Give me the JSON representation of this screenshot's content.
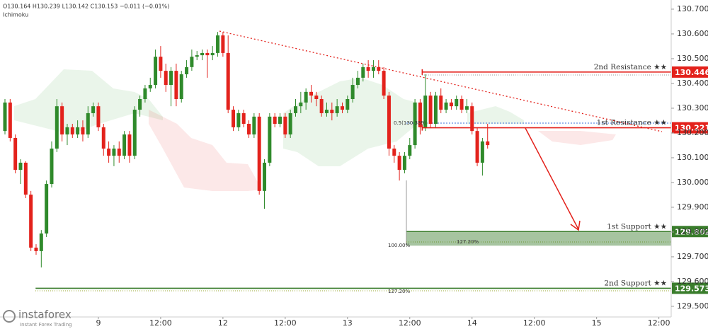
{
  "chart_data": {
    "type": "candlestick",
    "header": "O130.164 H130.239 L130.142 C130.153 −0.011 (−0.01%)",
    "indicator": "Ichimoku",
    "up_color": "#2f8a2b",
    "down_color": "#e3221c",
    "xlim": [
      -0.955,
      128.37
    ],
    "ylim": [
      129.457,
      130.737
    ],
    "xticks": [
      {
        "value": 18,
        "label": "9"
      },
      {
        "value": 30,
        "label": "12:00"
      },
      {
        "value": 42,
        "label": "12"
      },
      {
        "value": 54,
        "label": "12:00"
      },
      {
        "value": 66,
        "label": "13"
      },
      {
        "value": 78,
        "label": "12:00"
      },
      {
        "value": 90,
        "label": "14"
      },
      {
        "value": 102,
        "label": "12:00"
      },
      {
        "value": 114,
        "label": "15"
      },
      {
        "value": 126,
        "label": "12:00"
      }
    ],
    "yticks": [
      {
        "value": 130.7,
        "label": "130.700"
      },
      {
        "value": 130.6,
        "label": "130.600"
      },
      {
        "value": 130.5,
        "label": "130.500"
      },
      {
        "value": 130.4,
        "label": "130.400"
      },
      {
        "value": 130.3,
        "label": "130.300"
      },
      {
        "value": 130.2,
        "label": "130.200"
      },
      {
        "value": 130.1,
        "label": "130.100"
      },
      {
        "value": 130.0,
        "label": "130.000"
      },
      {
        "value": 129.9,
        "label": "129.900"
      },
      {
        "value": 129.8,
        "label": "129.800"
      },
      {
        "value": 129.7,
        "label": "129.700"
      },
      {
        "value": 129.6,
        "label": "129.600"
      },
      {
        "value": 129.5,
        "label": "129.500"
      }
    ],
    "open": [
      130.208,
      130.323,
      130.18,
      130.051,
      130.08,
      129.951,
      129.737,
      129.723,
      129.794,
      129.994,
      130.137,
      130.308,
      130.194,
      130.223,
      130.194,
      130.223,
      130.194,
      130.28,
      130.308,
      130.223,
      130.137,
      130.108,
      130.137,
      130.108,
      130.194,
      130.108,
      130.294,
      130.337,
      130.38,
      130.394,
      130.508,
      130.451,
      130.394,
      130.451,
      130.337,
      130.437,
      130.466,
      130.508,
      130.514,
      130.523,
      130.514,
      130.523,
      130.594,
      130.523,
      130.294,
      130.223,
      130.28,
      130.237,
      130.194,
      130.266,
      129.966,
      130.08,
      130.266,
      130.237,
      130.266,
      130.194,
      130.28,
      130.308,
      130.323,
      130.366,
      130.351,
      130.337,
      130.28,
      130.294,
      130.28,
      130.308,
      130.294,
      130.337,
      130.394,
      130.423,
      130.466,
      130.451,
      130.466,
      130.451,
      130.351,
      130.137,
      130.108,
      130.051,
      130.108,
      130.151,
      130.323,
      130.223,
      130.351,
      130.237,
      130.351,
      130.294,
      130.323,
      130.308,
      130.337,
      130.294,
      130.308,
      130.208,
      130.08,
      130.166
    ],
    "high": [
      130.337,
      130.337,
      130.194,
      130.094,
      130.086,
      129.966,
      129.751,
      129.808,
      130.008,
      130.166,
      130.337,
      130.323,
      130.237,
      130.237,
      130.251,
      130.251,
      130.308,
      130.323,
      130.323,
      130.237,
      130.166,
      130.151,
      130.166,
      130.208,
      130.208,
      130.308,
      130.351,
      130.394,
      130.423,
      130.537,
      130.551,
      130.48,
      130.466,
      130.48,
      130.451,
      130.494,
      130.537,
      130.531,
      130.537,
      130.537,
      130.551,
      130.608,
      130.608,
      130.594,
      130.308,
      130.294,
      130.294,
      130.251,
      130.28,
      130.28,
      130.094,
      130.28,
      130.28,
      130.28,
      130.28,
      130.294,
      130.337,
      130.366,
      130.38,
      130.394,
      130.366,
      130.351,
      130.323,
      130.323,
      130.337,
      130.323,
      130.351,
      130.423,
      130.451,
      130.48,
      130.494,
      130.494,
      130.494,
      130.466,
      130.366,
      130.151,
      130.123,
      130.123,
      130.18,
      130.337,
      130.337,
      130.437,
      130.366,
      130.366,
      130.38,
      130.337,
      130.337,
      130.351,
      130.351,
      130.337,
      130.323,
      130.223,
      130.18,
      130.237
    ],
    "low": [
      130.194,
      130.166,
      130.037,
      129.994,
      129.937,
      129.723,
      129.708,
      129.657,
      129.78,
      129.98,
      130.123,
      130.166,
      130.151,
      130.18,
      130.18,
      130.166,
      130.18,
      130.266,
      130.208,
      130.108,
      130.08,
      130.066,
      130.08,
      130.094,
      130.08,
      130.094,
      130.266,
      130.323,
      130.366,
      130.38,
      130.423,
      130.366,
      130.308,
      130.308,
      130.323,
      130.423,
      130.451,
      130.494,
      130.494,
      130.423,
      130.494,
      130.508,
      130.508,
      130.28,
      130.208,
      130.208,
      130.223,
      130.18,
      130.18,
      129.951,
      129.894,
      130.066,
      130.223,
      130.223,
      130.18,
      130.18,
      130.266,
      130.28,
      130.294,
      130.323,
      130.308,
      130.266,
      130.266,
      130.251,
      130.266,
      130.28,
      130.28,
      130.323,
      130.38,
      130.408,
      130.423,
      130.423,
      130.437,
      130.337,
      130.108,
      130.08,
      130.008,
      130.037,
      130.094,
      130.137,
      130.194,
      130.208,
      130.223,
      130.223,
      130.28,
      130.28,
      130.294,
      130.294,
      130.28,
      130.28,
      130.194,
      130.066,
      130.028,
      130.137
    ],
    "close": [
      130.323,
      130.18,
      130.051,
      130.08,
      129.951,
      129.737,
      129.723,
      129.794,
      129.994,
      130.137,
      130.308,
      130.194,
      130.223,
      130.194,
      130.223,
      130.194,
      130.28,
      130.308,
      130.223,
      130.137,
      130.108,
      130.137,
      130.108,
      130.194,
      130.108,
      130.294,
      130.337,
      130.38,
      130.394,
      130.508,
      130.451,
      130.394,
      130.451,
      130.337,
      130.437,
      130.466,
      130.508,
      130.514,
      130.523,
      130.514,
      130.523,
      130.594,
      130.523,
      130.294,
      130.223,
      130.28,
      130.237,
      130.194,
      130.266,
      129.966,
      130.08,
      130.266,
      130.237,
      130.266,
      130.194,
      130.28,
      130.308,
      130.323,
      130.366,
      130.351,
      130.337,
      130.28,
      130.294,
      130.28,
      130.308,
      130.294,
      130.337,
      130.394,
      130.423,
      130.466,
      130.451,
      130.466,
      130.451,
      130.351,
      130.137,
      130.108,
      130.051,
      130.108,
      130.151,
      130.323,
      130.223,
      130.351,
      130.237,
      130.351,
      130.294,
      130.323,
      130.308,
      130.337,
      130.294,
      130.308,
      130.208,
      130.08,
      130.166,
      130.151
    ],
    "levels": [
      {
        "name": "2nd Resistance ★★",
        "value": 130.446,
        "color": "#e3221c",
        "start": 80.4
      },
      {
        "name": "1st Resistance ★★",
        "value": 130.221,
        "color": "#e3221c",
        "start": 80.4
      },
      {
        "name": "1st Support ★★",
        "value": 129.802,
        "color": "#3a7d2c",
        "start": 77.4,
        "zone_low": 129.745
      },
      {
        "name": "2nd Support ★★",
        "value": 129.573,
        "color": "#3a7d2c",
        "start": 5.9
      }
    ],
    "fib_labels": [
      "0.5(130.339)",
      "100.00%",
      "127.20%",
      "127.20%"
    ],
    "watermark": {
      "brand": "instaforex",
      "tagline": "Instant Forex Trading"
    }
  }
}
